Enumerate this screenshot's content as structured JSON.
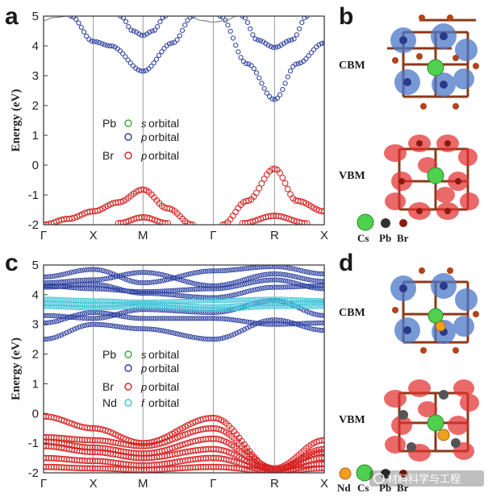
{
  "chart_data": [
    {
      "type": "line",
      "panel": "a",
      "ylabel": "Energy (eV)",
      "ylim": [
        -2,
        5
      ],
      "yticks": [
        -2,
        -1,
        0,
        1,
        2,
        3,
        4,
        5
      ],
      "k_labels": [
        "Γ",
        "X",
        "M",
        "Γ",
        "R",
        "X"
      ],
      "k_positions": [
        0,
        1,
        2,
        3.414,
        4.646,
        5.646
      ],
      "legend": [
        {
          "element": "Pb",
          "orbital": "s",
          "word": "orbital",
          "color": "#3aa83a"
        },
        {
          "element": "",
          "orbital": "p",
          "word": "orbital",
          "color": "#2b3fa0"
        },
        {
          "element": "Br",
          "orbital": "p",
          "word": "orbital",
          "color": "#d62020"
        }
      ],
      "bands": [
        {
          "character": "Pb-p",
          "color": "#2b3fa0",
          "k": [
            0.55,
            1,
            1.35,
            2,
            2.6,
            3.0
          ],
          "E": [
            5.0,
            4.15,
            4.0,
            3.15,
            4.1,
            5.0
          ]
        },
        {
          "character": "Pb-p",
          "color": "#2b3fa0",
          "k": [
            1.55,
            1.8,
            2,
            2.2,
            2.45
          ],
          "E": [
            5.0,
            4.5,
            4.35,
            4.5,
            5.0
          ]
        },
        {
          "character": "Pb-p",
          "color": "#2b3fa0",
          "k": [
            3.55,
            4.1,
            4.646,
            5.1,
            5.646
          ],
          "E": [
            5.0,
            3.4,
            2.2,
            3.4,
            4.1
          ]
        },
        {
          "character": "Pb-p",
          "color": "#2b3fa0",
          "k": [
            4.0,
            4.3,
            4.646,
            5.0,
            5.3
          ],
          "E": [
            5.0,
            4.2,
            3.95,
            4.2,
            5.0
          ]
        },
        {
          "character": "Br-p",
          "color": "#d62020",
          "k": [
            0,
            0.5,
            1,
            1.5,
            2,
            2.5,
            3.0
          ],
          "E": [
            -2.0,
            -1.8,
            -1.55,
            -1.25,
            -0.82,
            -1.45,
            -2.0
          ]
        },
        {
          "character": "Br-p",
          "color": "#d62020",
          "k": [
            3.6,
            4.1,
            4.646,
            5.1,
            5.646
          ],
          "E": [
            -2.0,
            -1.2,
            -0.12,
            -1.2,
            -1.55
          ]
        },
        {
          "character": "Br-p",
          "color": "#d62020",
          "k": [
            1.5,
            2,
            2.5
          ],
          "E": [
            -1.95,
            -1.75,
            -1.95
          ]
        },
        {
          "character": "Br-p",
          "color": "#d62020",
          "k": [
            4.0,
            4.646,
            5.3
          ],
          "E": [
            -1.95,
            -1.7,
            -1.95
          ]
        },
        {
          "character": "other",
          "color": "#888888",
          "k": [
            0,
            0.2,
            0.5
          ],
          "E": [
            4.85,
            4.95,
            5.0
          ]
        },
        {
          "character": "other",
          "color": "#888888",
          "k": [
            2.9,
            3.2,
            3.414,
            3.65,
            3.9
          ],
          "E": [
            5.0,
            4.85,
            4.8,
            4.85,
            5.0
          ]
        }
      ],
      "annotations": [
        "CBM",
        "VBM"
      ],
      "atoms": [
        "Cs",
        "Pb",
        "Br"
      ]
    },
    {
      "type": "line",
      "panel": "c",
      "ylabel": "Energy (eV)",
      "ylim": [
        -2,
        5
      ],
      "yticks": [
        -2,
        -1,
        0,
        1,
        2,
        3,
        4,
        5
      ],
      "k_labels": [
        "Γ",
        "X",
        "M",
        "Γ",
        "R",
        "X"
      ],
      "k_positions": [
        0,
        1,
        2,
        3.414,
        4.646,
        5.646
      ],
      "legend": [
        {
          "element": "Pb",
          "orbital": "s",
          "word": "orbital",
          "color": "#3aa83a"
        },
        {
          "element": "",
          "orbital": "p",
          "word": "orbital",
          "color": "#2b3fa0"
        },
        {
          "element": "Br",
          "orbital": "p",
          "word": "orbital",
          "color": "#d62020"
        },
        {
          "element": "Nd",
          "orbital": "f",
          "word": "orbital",
          "color": "#3fc4d8"
        }
      ],
      "bands": [
        {
          "character": "Pb-p",
          "color": "#2b3fa0",
          "k": [
            0,
            1,
            2,
            3.414,
            4.646,
            5.646
          ],
          "E": [
            4.6,
            4.85,
            4.4,
            4.8,
            4.95,
            4.7
          ]
        },
        {
          "character": "Pb-p",
          "color": "#2b3fa0",
          "k": [
            0,
            1,
            2,
            3.414,
            4.646,
            5.646
          ],
          "E": [
            4.4,
            4.5,
            4.75,
            4.3,
            4.7,
            4.45
          ]
        },
        {
          "character": "Pb-p",
          "color": "#2b3fa0",
          "k": [
            0,
            1,
            2,
            3.414,
            4.646,
            5.646
          ],
          "E": [
            4.3,
            4.2,
            4.1,
            4.2,
            4.5,
            4.2
          ]
        },
        {
          "character": "Pb-p",
          "color": "#2b3fa0",
          "k": [
            0,
            1,
            2,
            3.414,
            4.646,
            5.646
          ],
          "E": [
            4.25,
            4.35,
            4.05,
            3.9,
            4.25,
            4.3
          ]
        },
        {
          "character": "Pb-p",
          "color": "#2b3fa0",
          "k": [
            0,
            1,
            2,
            3.414,
            4.646,
            5.646
          ],
          "E": [
            3.3,
            3.2,
            3.5,
            3.4,
            3.8,
            3.3
          ]
        },
        {
          "character": "Pb-p",
          "color": "#2b3fa0",
          "k": [
            0,
            1,
            2,
            3.414,
            4.646,
            5.646
          ],
          "E": [
            3.05,
            3.4,
            3.2,
            3.2,
            3.0,
            3.05
          ]
        },
        {
          "character": "Pb-p",
          "color": "#2b3fa0",
          "k": [
            0,
            1,
            2,
            3.414,
            4.646,
            5.646
          ],
          "E": [
            2.5,
            3.0,
            2.85,
            2.5,
            3.15,
            2.8
          ]
        },
        {
          "character": "Nd-f",
          "color": "#3fc4d8",
          "k": [
            0,
            1,
            2,
            3.414,
            4.646,
            5.646
          ],
          "E": [
            3.85,
            3.8,
            3.75,
            3.8,
            3.85,
            3.8
          ]
        },
        {
          "character": "Nd-f",
          "color": "#3fc4d8",
          "k": [
            0,
            1,
            2,
            3.414,
            4.646,
            5.646
          ],
          "E": [
            3.7,
            3.65,
            3.7,
            3.6,
            3.7,
            3.75
          ]
        },
        {
          "character": "Nd-f",
          "color": "#3fc4d8",
          "k": [
            0,
            1,
            2,
            3.414,
            4.646,
            5.646
          ],
          "E": [
            3.6,
            3.55,
            3.6,
            3.5,
            3.6,
            3.6
          ]
        },
        {
          "character": "Br-p",
          "color": "#d62020",
          "k": [
            0,
            1,
            2,
            3.414,
            4.646,
            5.646
          ],
          "E": [
            -0.1,
            -0.5,
            -1.0,
            -0.15,
            -1.9,
            -1.2
          ]
        },
        {
          "character": "Br-p",
          "color": "#d62020",
          "k": [
            0,
            1,
            2,
            3.414,
            4.646,
            5.646
          ],
          "E": [
            -0.8,
            -0.9,
            -1.1,
            -0.5,
            -1.85,
            -0.9
          ]
        },
        {
          "character": "Br-p",
          "color": "#d62020",
          "k": [
            0,
            1,
            2,
            3.414,
            4.646,
            5.646
          ],
          "E": [
            -0.95,
            -1.15,
            -1.35,
            -0.85,
            -1.9,
            -1.3
          ]
        },
        {
          "character": "Br-p",
          "color": "#d62020",
          "k": [
            0,
            1,
            2,
            3.414,
            4.646,
            5.646
          ],
          "E": [
            -1.1,
            -1.3,
            -1.5,
            -1.2,
            -1.9,
            -1.5
          ]
        },
        {
          "character": "Br-p",
          "color": "#d62020",
          "k": [
            0,
            1,
            2,
            3.414,
            4.646,
            5.646
          ],
          "E": [
            -1.5,
            -1.6,
            -1.75,
            -1.5,
            -1.95,
            -1.7
          ]
        },
        {
          "character": "Br-p",
          "color": "#d62020",
          "k": [
            0,
            1,
            2,
            3.414,
            4.646,
            5.646
          ],
          "E": [
            -1.8,
            -1.85,
            -1.9,
            -1.8,
            -1.95,
            -1.85
          ]
        }
      ],
      "annotations": [
        "CBM",
        "VBM"
      ],
      "atoms": [
        "Nd",
        "Cs",
        "Pb",
        "Br"
      ]
    }
  ],
  "panels": {
    "a": "a",
    "b": "b",
    "c": "c",
    "d": "d"
  },
  "watermark": "材料科学与工程"
}
